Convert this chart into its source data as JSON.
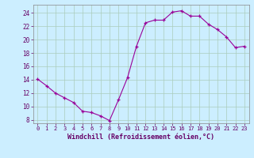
{
  "x": [
    0,
    1,
    2,
    3,
    4,
    5,
    6,
    7,
    8,
    9,
    10,
    11,
    12,
    13,
    14,
    15,
    16,
    17,
    18,
    19,
    20,
    21,
    22,
    23
  ],
  "y": [
    14.1,
    13.1,
    12.0,
    11.3,
    10.6,
    9.3,
    9.1,
    8.6,
    7.9,
    11.0,
    14.3,
    19.0,
    22.5,
    22.9,
    22.9,
    24.1,
    24.3,
    23.5,
    23.5,
    22.3,
    21.5,
    20.4,
    18.8,
    19.0
  ],
  "line_color": "#990099",
  "marker": "+",
  "marker_size": 3,
  "background_color": "#cceeff",
  "grid_color": "#aaccbb",
  "xlabel": "Windchill (Refroidissement éolien,°C)",
  "xlabel_color": "#660066",
  "xlabel_fontsize": 6,
  "tick_color": "#660066",
  "yticks": [
    8,
    10,
    12,
    14,
    16,
    18,
    20,
    22,
    24
  ],
  "xticks": [
    0,
    1,
    2,
    3,
    4,
    5,
    6,
    7,
    8,
    9,
    10,
    11,
    12,
    13,
    14,
    15,
    16,
    17,
    18,
    19,
    20,
    21,
    22,
    23
  ],
  "ylim": [
    7.5,
    25.2
  ],
  "xlim": [
    -0.5,
    23.5
  ]
}
